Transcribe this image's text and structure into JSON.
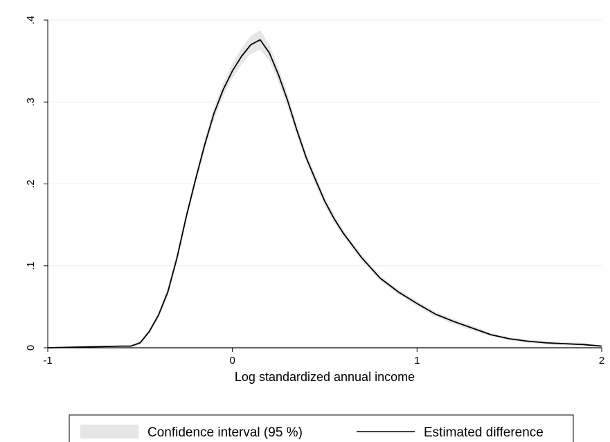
{
  "chart_data": {
    "type": "area",
    "title": "",
    "xlabel": "Log standardized annual income",
    "ylabel": "",
    "xlim": [
      -1,
      2
    ],
    "ylim": [
      0,
      0.4
    ],
    "x_ticks": [
      -1,
      0,
      1,
      2
    ],
    "x_tick_labels": [
      "-1",
      "0",
      "1",
      "2"
    ],
    "y_ticks": [
      0,
      0.1,
      0.2,
      0.3,
      0.4
    ],
    "y_tick_labels": [
      "0",
      ".1",
      ".2",
      ".3",
      ".4"
    ],
    "grid": true,
    "legend_position": "bottom",
    "colors": {
      "ci_band": "#e6e6e6",
      "line": "#000000",
      "grid": "#eeeeee",
      "axis": "#000000",
      "zero_line": "#888888"
    },
    "series": [
      {
        "name": "Estimated difference",
        "style": "line",
        "x": [
          -1,
          -0.8,
          -0.6,
          -0.55,
          -0.5,
          -0.45,
          -0.4,
          -0.35,
          -0.3,
          -0.25,
          -0.2,
          -0.15,
          -0.1,
          -0.05,
          0,
          0.05,
          0.1,
          0.15,
          0.2,
          0.25,
          0.3,
          0.35,
          0.4,
          0.45,
          0.5,
          0.55,
          0.6,
          0.7,
          0.8,
          0.9,
          1.0,
          1.1,
          1.2,
          1.3,
          1.4,
          1.5,
          1.6,
          1.7,
          1.8,
          1.9,
          2.0
        ],
        "y": [
          0.0,
          0.001,
          0.002,
          0.002,
          0.006,
          0.02,
          0.04,
          0.068,
          0.11,
          0.16,
          0.205,
          0.248,
          0.286,
          0.315,
          0.338,
          0.356,
          0.37,
          0.376,
          0.36,
          0.333,
          0.301,
          0.265,
          0.232,
          0.205,
          0.179,
          0.158,
          0.14,
          0.11,
          0.085,
          0.068,
          0.054,
          0.041,
          0.032,
          0.024,
          0.016,
          0.011,
          0.008,
          0.006,
          0.005,
          0.004,
          0.002
        ]
      },
      {
        "name": "Confidence interval (95 %)",
        "style": "band",
        "x": [
          -1,
          -0.8,
          -0.6,
          -0.55,
          -0.5,
          -0.45,
          -0.4,
          -0.35,
          -0.3,
          -0.25,
          -0.2,
          -0.15,
          -0.1,
          -0.05,
          0,
          0.05,
          0.1,
          0.15,
          0.2,
          0.25,
          0.3,
          0.35,
          0.4,
          0.45,
          0.5,
          0.55,
          0.6,
          0.7,
          0.8,
          0.9,
          1.0,
          1.1,
          1.2,
          1.3,
          1.4,
          1.5,
          1.6,
          1.7,
          1.8,
          1.9,
          2.0
        ],
        "lower": [
          0.0,
          0.0,
          0.001,
          0.001,
          0.004,
          0.017,
          0.036,
          0.063,
          0.104,
          0.154,
          0.199,
          0.241,
          0.279,
          0.307,
          0.329,
          0.346,
          0.359,
          0.364,
          0.35,
          0.324,
          0.293,
          0.258,
          0.226,
          0.199,
          0.174,
          0.153,
          0.136,
          0.106,
          0.082,
          0.065,
          0.051,
          0.038,
          0.029,
          0.021,
          0.014,
          0.009,
          0.006,
          0.004,
          0.003,
          0.002,
          0.001
        ],
        "upper": [
          0.001,
          0.002,
          0.003,
          0.003,
          0.008,
          0.023,
          0.044,
          0.073,
          0.116,
          0.166,
          0.211,
          0.255,
          0.293,
          0.323,
          0.347,
          0.366,
          0.381,
          0.388,
          0.37,
          0.342,
          0.309,
          0.272,
          0.238,
          0.211,
          0.184,
          0.163,
          0.144,
          0.114,
          0.088,
          0.071,
          0.057,
          0.044,
          0.035,
          0.027,
          0.018,
          0.013,
          0.01,
          0.008,
          0.007,
          0.006,
          0.003
        ]
      }
    ],
    "legend": [
      {
        "label": "Confidence interval (95 %)",
        "kind": "band"
      },
      {
        "label": "Estimated difference",
        "kind": "line"
      }
    ]
  }
}
